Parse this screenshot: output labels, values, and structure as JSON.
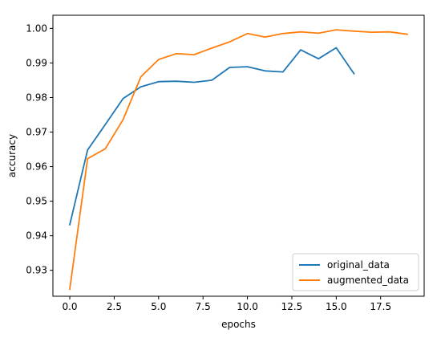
{
  "chart_data": {
    "type": "line",
    "title": "",
    "xlabel": "epochs",
    "ylabel": "accuracy",
    "xlim": [
      -0.95,
      19.95
    ],
    "ylim": [
      0.9225,
      1.0038
    ],
    "xticks": [
      0.0,
      2.5,
      5.0,
      7.5,
      10.0,
      12.5,
      15.0,
      17.5
    ],
    "xtick_labels": [
      "0.0",
      "2.5",
      "5.0",
      "7.5",
      "10.0",
      "12.5",
      "15.0",
      "17.5"
    ],
    "yticks": [
      0.93,
      0.94,
      0.95,
      0.96,
      0.97,
      0.98,
      0.99,
      1.0
    ],
    "ytick_labels": [
      "0.93",
      "0.94",
      "0.95",
      "0.96",
      "0.97",
      "0.98",
      "0.99",
      "1.00"
    ],
    "grid": false,
    "legend_position": "lower-right",
    "series": [
      {
        "name": "original_data",
        "color": "#1f77b4",
        "x": [
          0,
          1,
          2,
          3,
          4,
          5,
          6,
          7,
          8,
          9,
          10,
          11,
          12,
          13,
          14,
          15,
          16
        ],
        "values": [
          0.9432,
          0.9648,
          0.9722,
          0.9797,
          0.9831,
          0.9846,
          0.9847,
          0.9844,
          0.985,
          0.9887,
          0.9889,
          0.9877,
          0.9874,
          0.9938,
          0.9912,
          0.9944,
          0.9869
        ]
      },
      {
        "name": "augmented_data",
        "color": "#ff7f0e",
        "x": [
          0,
          1,
          2,
          3,
          4,
          5,
          6,
          7,
          8,
          9,
          10,
          11,
          12,
          13,
          14,
          15,
          16,
          17,
          18,
          19
        ],
        "values": [
          0.9245,
          0.9623,
          0.9652,
          0.9736,
          0.986,
          0.991,
          0.9927,
          0.9924,
          0.9943,
          0.9961,
          0.9985,
          0.9975,
          0.9985,
          0.999,
          0.9986,
          0.9996,
          0.9992,
          0.9989,
          0.999,
          0.9983
        ]
      }
    ]
  }
}
